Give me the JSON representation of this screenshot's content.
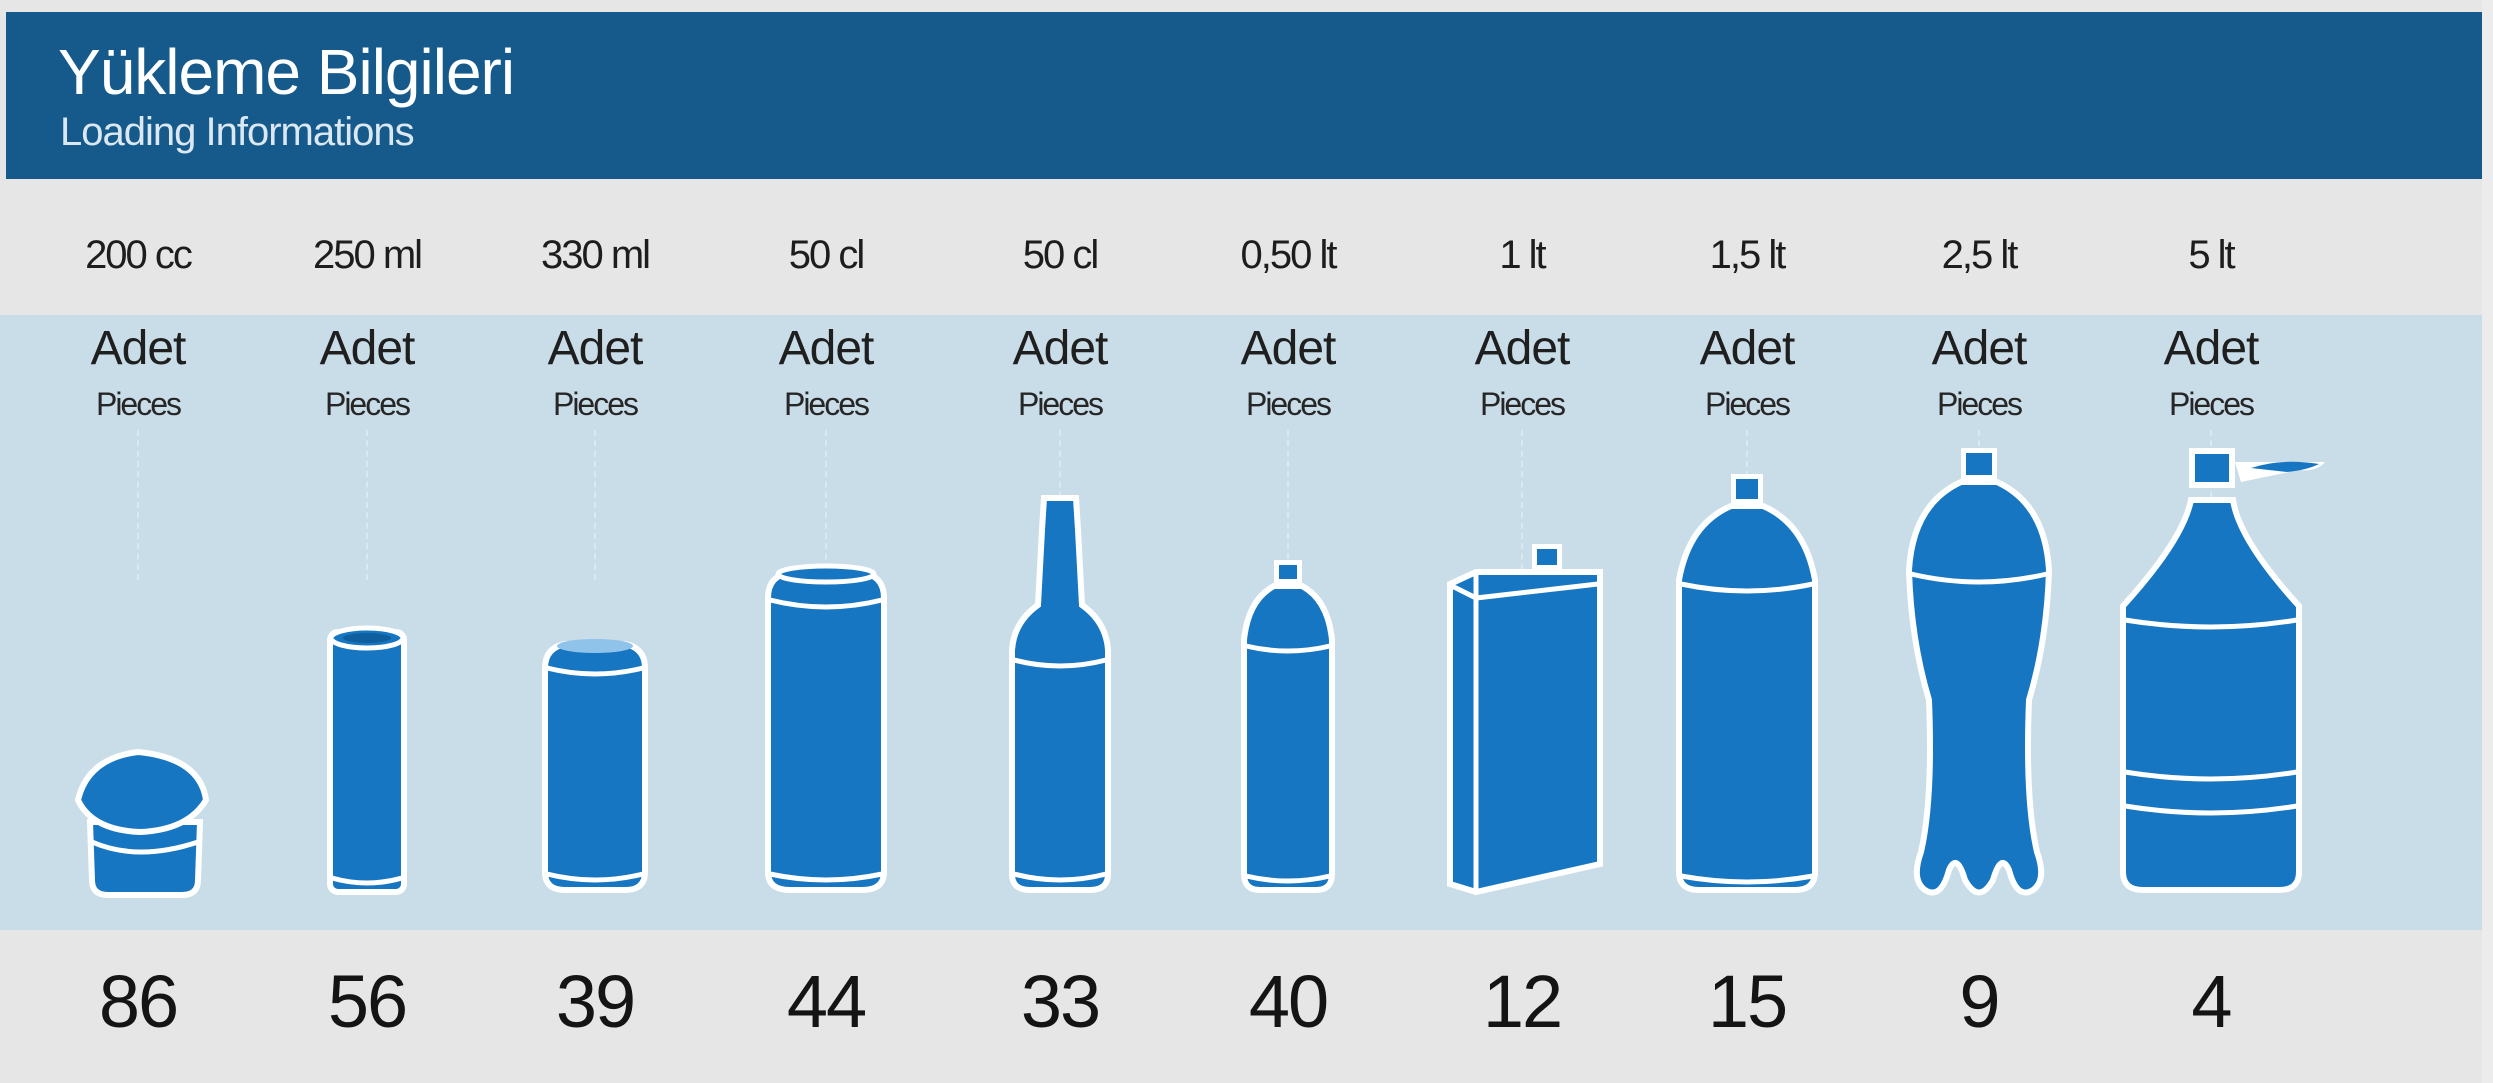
{
  "header": {
    "title": "Yükleme Bilgileri",
    "subtitle": "Loading Informations"
  },
  "unit_label_tr": "Adet",
  "unit_label_en": "Pieces",
  "colors": {
    "header": "#155a8a",
    "panel": "#c9dde8",
    "product": "#1676c2",
    "rows": "#e6e6e7"
  },
  "items": [
    {
      "size": "200 cc",
      "count": "86",
      "icon": "yogurt-cup-icon"
    },
    {
      "size": "250 ml",
      "count": "56",
      "icon": "slim-can-icon"
    },
    {
      "size": "330 ml",
      "count": "39",
      "icon": "standard-can-icon"
    },
    {
      "size": "50 cl",
      "count": "44",
      "icon": "tall-can-icon"
    },
    {
      "size": "50 cl",
      "count": "33",
      "icon": "glass-bottle-icon"
    },
    {
      "size": "0,50 lt",
      "count": "40",
      "icon": "small-pet-bottle-icon"
    },
    {
      "size": "1 lt",
      "count": "12",
      "icon": "carton-box-icon"
    },
    {
      "size": "1,5 lt",
      "count": "15",
      "icon": "pet-bottle-icon"
    },
    {
      "size": "2,5 lt",
      "count": "9",
      "icon": "large-pet-bottle-icon"
    },
    {
      "size": "5 lt",
      "count": "4",
      "icon": "water-jug-icon"
    }
  ]
}
